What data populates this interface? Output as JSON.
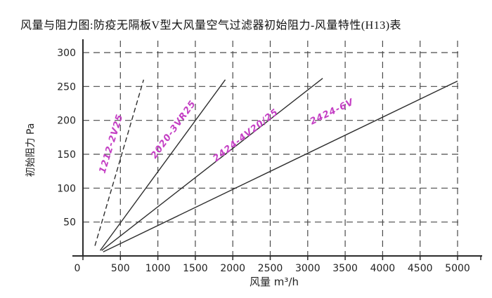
{
  "page": {
    "title": "风量与阻力图:防疫无隔板V型大风量空气过滤器初始阻力-风量特性(H13)表"
  },
  "chart_data": {
    "type": "line",
    "title": "风量与阻力图:防疫无隔板V型大风量空气过滤器初始阻力-风量特性(H13)表",
    "xlabel": "风量  m³/h",
    "ylabel": "初始阻力 Pa",
    "xlim": [
      0,
      5000
    ],
    "ylim": [
      0,
      300
    ],
    "x_ticks": [
      0,
      500,
      1000,
      1500,
      2000,
      2500,
      3000,
      3500,
      4000,
      4500,
      5000
    ],
    "y_ticks": [
      50,
      100,
      150,
      200,
      250,
      300
    ],
    "grid": true,
    "grid_style": "dashed",
    "legend_position": "labels-on-lines",
    "axis_color": "#2b2b2b",
    "grid_color": "#4a4a4a",
    "line_color": "#2e2e2e",
    "series_label_color": "#c43fc4",
    "series": [
      {
        "name": "1212-2V25",
        "dash": true,
        "points": [
          [
            160,
            15
          ],
          [
            810,
            260
          ]
        ],
        "label_pos": {
          "x": 162,
          "y": 206,
          "angle": -73
        }
      },
      {
        "name": "2020-3VR25",
        "dash": false,
        "points": [
          [
            230,
            8
          ],
          [
            1900,
            260
          ]
        ],
        "label_pos": {
          "x": 250,
          "y": 187,
          "angle": -54
        }
      },
      {
        "name": "2424-4V20/25",
        "dash": false,
        "points": [
          [
            250,
            8
          ],
          [
            3200,
            262
          ]
        ],
        "label_pos": {
          "x": 352,
          "y": 196,
          "angle": -38
        }
      },
      {
        "name": "2424-6V",
        "dash": false,
        "points": [
          [
            270,
            6
          ],
          [
            5000,
            258
          ]
        ],
        "label_pos": {
          "x": 474,
          "y": 163,
          "angle": -26
        }
      }
    ]
  }
}
